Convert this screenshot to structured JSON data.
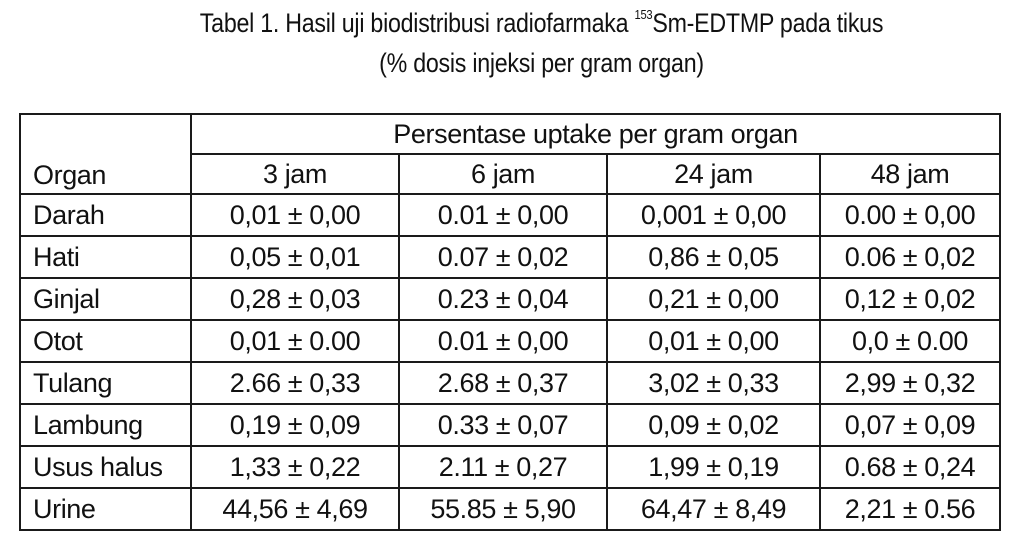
{
  "caption": {
    "line1_prefix": "Tabel 1. Hasil uji biodistribusi radiofarmaka ",
    "isotope_mass": "153",
    "line1_suffix": "Sm-EDTMP pada tikus",
    "line2": "(% dosis injeksi per gram organ)"
  },
  "table": {
    "organ_header": "Organ",
    "group_header": "Persentase uptake per gram  organ",
    "time_headers": [
      "3 jam",
      "6 jam",
      "24 jam",
      "48 jam"
    ],
    "rows": [
      {
        "organ": "Darah",
        "values": [
          "0,01 ± 0,00",
          "0.01 ± 0,00",
          "0,001 ± 0,00",
          "0.00 ± 0,00"
        ]
      },
      {
        "organ": "Hati",
        "values": [
          "0,05 ± 0,01",
          "0.07 ± 0,02",
          "0,86 ± 0,05",
          "0.06 ± 0,02"
        ]
      },
      {
        "organ": "Ginjal",
        "values": [
          "0,28 ± 0,03",
          "0.23 ± 0,04",
          "0,21 ± 0,00",
          "0,12 ± 0,02"
        ]
      },
      {
        "organ": "Otot",
        "values": [
          "0,01 ± 0.00",
          "0.01 ± 0,00",
          "0,01 ± 0,00",
          "0,0 ± 0.00"
        ]
      },
      {
        "organ": "Tulang",
        "values": [
          "2.66 ± 0,33",
          "2.68 ± 0,37",
          "3,02 ± 0,33",
          "2,99 ± 0,32"
        ]
      },
      {
        "organ": "Lambung",
        "values": [
          "0,19 ± 0,09",
          "0.33 ± 0,07",
          "0,09 ± 0,02",
          "0,07 ± 0,09"
        ]
      },
      {
        "organ": "Usus halus",
        "values": [
          "1,33 ± 0,22",
          "2.11 ± 0,27",
          "1,99 ± 0,19",
          "0.68 ± 0,24"
        ]
      },
      {
        "organ": "Urine",
        "values": [
          "44,56 ± 4,69",
          "55.85 ± 5,90",
          "64,47 ± 8,49",
          "2,21 ± 0.56"
        ]
      }
    ]
  }
}
